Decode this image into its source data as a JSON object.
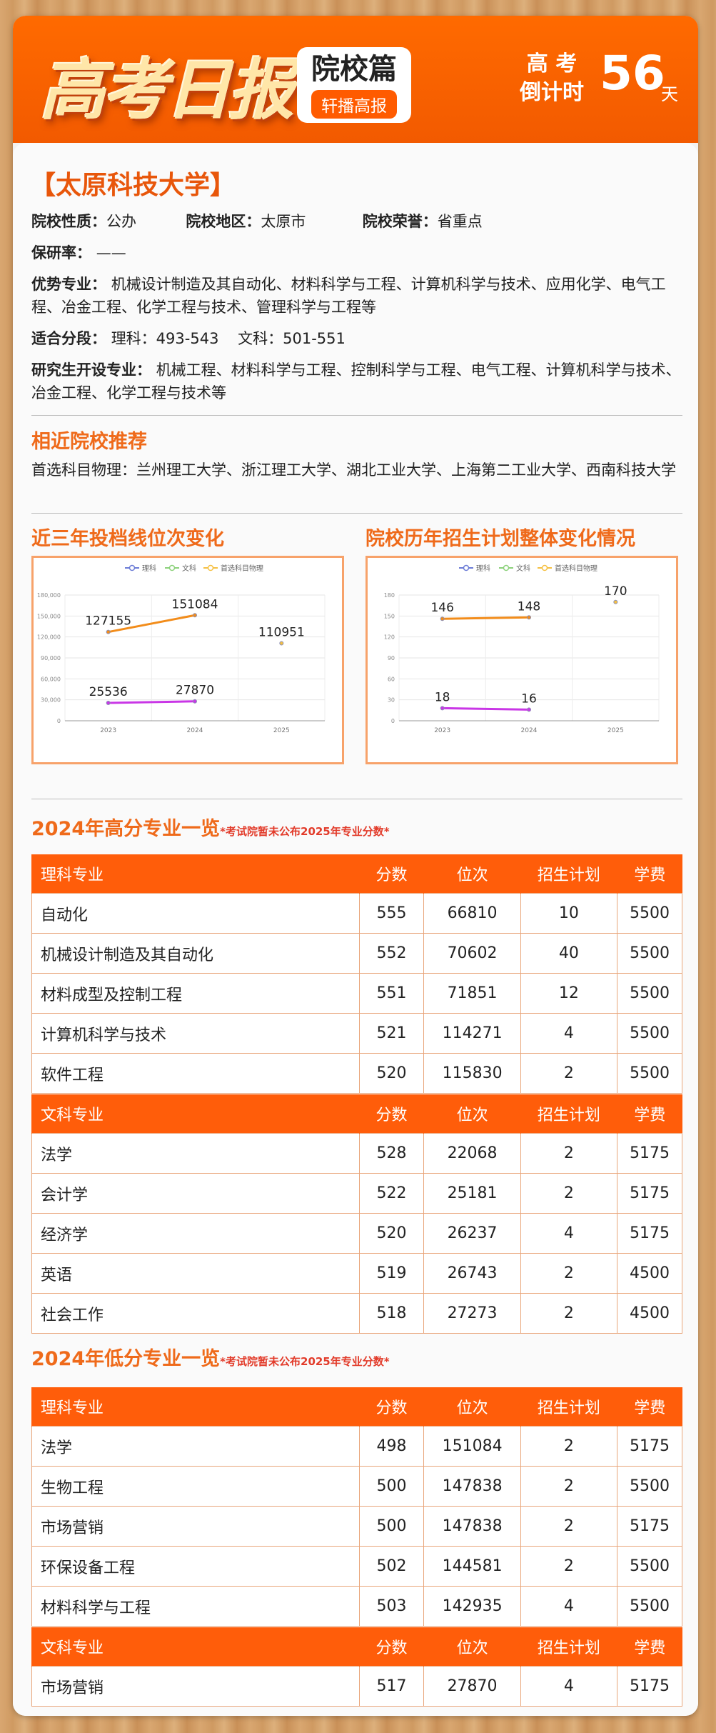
{
  "header": {
    "logo": "高考日报",
    "badge_title": "院校篇",
    "badge_sub": "轩播高报",
    "countdown_line1": "高 考",
    "countdown_line2": "倒计时",
    "countdown_days": "56",
    "countdown_unit": "天"
  },
  "university": {
    "name": "【太原科技大学】",
    "nature_label": "院校性质：",
    "nature": "公办",
    "region_label": "院校地区：",
    "region": "太原市",
    "honor_label": "院校荣誉：",
    "honor": "省重点",
    "postgrad_label": "保研率：",
    "postgrad": "——",
    "majors_label": "优势专业：",
    "majors": "机械设计制造及其自动化、材料科学与工程、计算机科学与技术、应用化学、电气工程、冶金工程、化学工程与技术、管理科学与工程等",
    "score_label": "适合分段：",
    "score": "理科：493-543    文科：501-551",
    "grad_label": "研究生开设专业：",
    "grad": "机械工程、材料科学与工程、控制科学与工程、电气工程、计算机科学与技术、冶金工程、化学工程与技术等"
  },
  "similar": {
    "title": "相近院校推荐",
    "text": "首选科目物理：兰州理工大学、浙江理工大学、湖北工业大学、上海第二工业大学、西南科技大学"
  },
  "chart_titles": {
    "left": "近三年投档线位次变化",
    "right": "院校历年招生计划整体变化情况"
  },
  "chart_data": [
    {
      "type": "line",
      "categories": [
        "2023",
        "2024",
        "2025"
      ],
      "series": [
        {
          "name": "理科",
          "values": [
            127155,
            151084,
            null
          ],
          "color": "#f28c1a"
        },
        {
          "name": "文科",
          "values": [
            25536,
            27870,
            null
          ],
          "color": "#c936e6"
        },
        {
          "name": "首选科目物理",
          "values": [
            null,
            null,
            110951
          ],
          "color": "#f5c042"
        }
      ],
      "ylim": [
        0,
        180000
      ],
      "yticks": [
        "0",
        "30,000",
        "60,000",
        "90,000",
        "120,000",
        "150,000",
        "180,000"
      ],
      "legend": "top",
      "grid": true
    },
    {
      "type": "line",
      "categories": [
        "2023",
        "2024",
        "2025"
      ],
      "series": [
        {
          "name": "理科",
          "values": [
            146,
            148,
            null
          ],
          "color": "#f28c1a"
        },
        {
          "name": "文科",
          "values": [
            18,
            16,
            null
          ],
          "color": "#c936e6"
        },
        {
          "name": "首选科目物理",
          "values": [
            null,
            null,
            170
          ],
          "color": "#f5c042"
        }
      ],
      "ylim": [
        0,
        180
      ],
      "yticks": [
        "0",
        "30",
        "60",
        "90",
        "120",
        "150",
        "180"
      ],
      "legend": "top",
      "grid": true
    }
  ],
  "high": {
    "title": "2024年高分专业一览",
    "note": "*考试院暂未公布2025年专业分数*",
    "sci_header": [
      "理科专业",
      "分数",
      "位次",
      "招生计划",
      "学费"
    ],
    "sci_rows": [
      [
        "自动化",
        "555",
        "66810",
        "10",
        "5500"
      ],
      [
        "机械设计制造及其自动化",
        "552",
        "70602",
        "40",
        "5500"
      ],
      [
        "材料成型及控制工程",
        "551",
        "71851",
        "12",
        "5500"
      ],
      [
        "计算机科学与技术",
        "521",
        "114271",
        "4",
        "5500"
      ],
      [
        "软件工程",
        "520",
        "115830",
        "2",
        "5500"
      ]
    ],
    "art_header": [
      "文科专业",
      "分数",
      "位次",
      "招生计划",
      "学费"
    ],
    "art_rows": [
      [
        "法学",
        "528",
        "22068",
        "2",
        "5175"
      ],
      [
        "会计学",
        "522",
        "25181",
        "2",
        "5175"
      ],
      [
        "经济学",
        "520",
        "26237",
        "4",
        "5175"
      ],
      [
        "英语",
        "519",
        "26743",
        "2",
        "4500"
      ],
      [
        "社会工作",
        "518",
        "27273",
        "2",
        "4500"
      ]
    ]
  },
  "low": {
    "title": "2024年低分专业一览",
    "note": "*考试院暂未公布2025年专业分数*",
    "sci_header": [
      "理科专业",
      "分数",
      "位次",
      "招生计划",
      "学费"
    ],
    "sci_rows": [
      [
        "法学",
        "498",
        "151084",
        "2",
        "5175"
      ],
      [
        "生物工程",
        "500",
        "147838",
        "2",
        "5500"
      ],
      [
        "市场营销",
        "500",
        "147838",
        "2",
        "5175"
      ],
      [
        "环保设备工程",
        "502",
        "144581",
        "2",
        "5500"
      ],
      [
        "材料科学与工程",
        "503",
        "142935",
        "4",
        "5500"
      ]
    ],
    "art_header": [
      "文科专业",
      "分数",
      "位次",
      "招生计划",
      "学费"
    ],
    "art_rows": [
      [
        "市场营销",
        "517",
        "27870",
        "4",
        "5175"
      ]
    ]
  }
}
